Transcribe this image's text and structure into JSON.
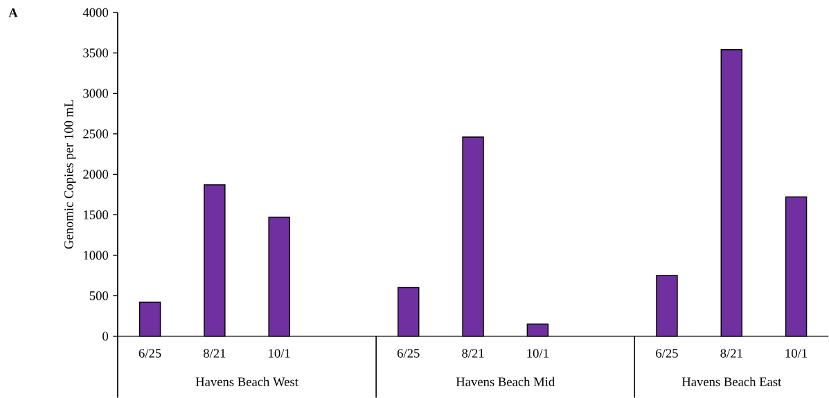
{
  "chart_data": {
    "type": "bar",
    "ylabel": "Genomic Copies per 100 mL",
    "categories": [
      "6/25",
      "8/21",
      "10/1",
      null,
      "6/25",
      "8/21",
      "10/1",
      null,
      "6/25",
      "8/21",
      "10/1"
    ],
    "values": [
      420,
      1870,
      1470,
      null,
      600,
      2460,
      150,
      null,
      750,
      3540,
      1720
    ],
    "color": "#7030a0",
    "ylim": [
      0,
      4000
    ],
    "yticks": [
      0,
      500,
      1000,
      1500,
      2000,
      2500,
      3000,
      3500,
      4000
    ],
    "grid": false,
    "annotations": [
      "A",
      "Havens Beach West",
      "Havens Beach Mid",
      "Havens Beach East"
    ]
  }
}
